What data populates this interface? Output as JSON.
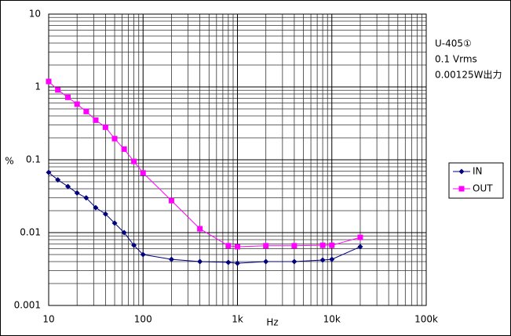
{
  "chart_data": {
    "type": "scatter",
    "x_label": "Hz",
    "y_label": "%",
    "annotations": [
      "U-405①",
      "0.1 Vrms",
      "0.00125W出力"
    ],
    "x": [
      10,
      12.5,
      16,
      20,
      25,
      31.5,
      40,
      50,
      63,
      80,
      100,
      200,
      400,
      800,
      1000,
      2000,
      4000,
      8000,
      10000,
      20000
    ],
    "series": [
      {
        "name": "IN",
        "color": "#000080",
        "marker": "diamond",
        "values": [
          0.067,
          0.053,
          0.043,
          0.035,
          0.03,
          0.022,
          0.018,
          0.0135,
          0.01,
          0.0067,
          0.005,
          0.0043,
          0.004,
          0.0039,
          0.0038,
          0.004,
          0.004,
          0.0042,
          0.0043,
          0.0064
        ]
      },
      {
        "name": "OUT",
        "color": "#ff00ff",
        "marker": "square",
        "values": [
          1.19,
          0.91,
          0.72,
          0.58,
          0.46,
          0.35,
          0.28,
          0.195,
          0.14,
          0.095,
          0.066,
          0.0275,
          0.0113,
          0.0066,
          0.0064,
          0.0066,
          0.0066,
          0.0067,
          0.0067,
          0.0086
        ]
      }
    ],
    "xlim": [
      10,
      100000
    ],
    "ylim": [
      0.001,
      10
    ],
    "xticks": [
      10,
      100,
      {
        "value": 1000,
        "label": "1k"
      },
      {
        "value": 10000,
        "label": "10k"
      },
      {
        "value": 100000,
        "label": "100k"
      }
    ],
    "yticks": [
      10,
      1,
      0.1,
      0.01,
      0.001
    ],
    "xlog": true,
    "ylog": true,
    "grid": true,
    "minor_grid": true,
    "legend": "right"
  }
}
